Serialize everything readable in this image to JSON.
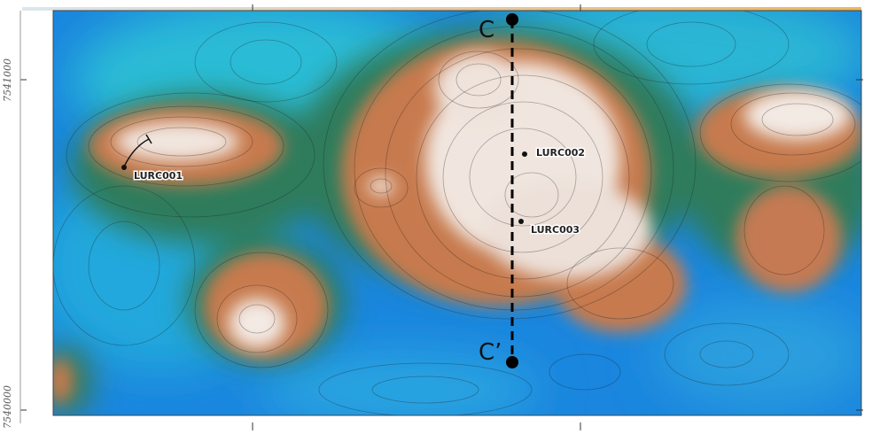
{
  "axis": {
    "y_ticks": [
      "7541000",
      "7540000"
    ]
  },
  "section_line": {
    "start_label": "C",
    "end_label": "C’"
  },
  "drillholes": [
    {
      "id": "LURC001"
    },
    {
      "id": "LURC002"
    },
    {
      "id": "LURC003"
    }
  ],
  "colors": {
    "low": "#1e8fe0",
    "mid_low": "#2ab8d0",
    "mid": "#2f7a5a",
    "mid_high": "#c77a4e",
    "high": "#f1e6df"
  }
}
